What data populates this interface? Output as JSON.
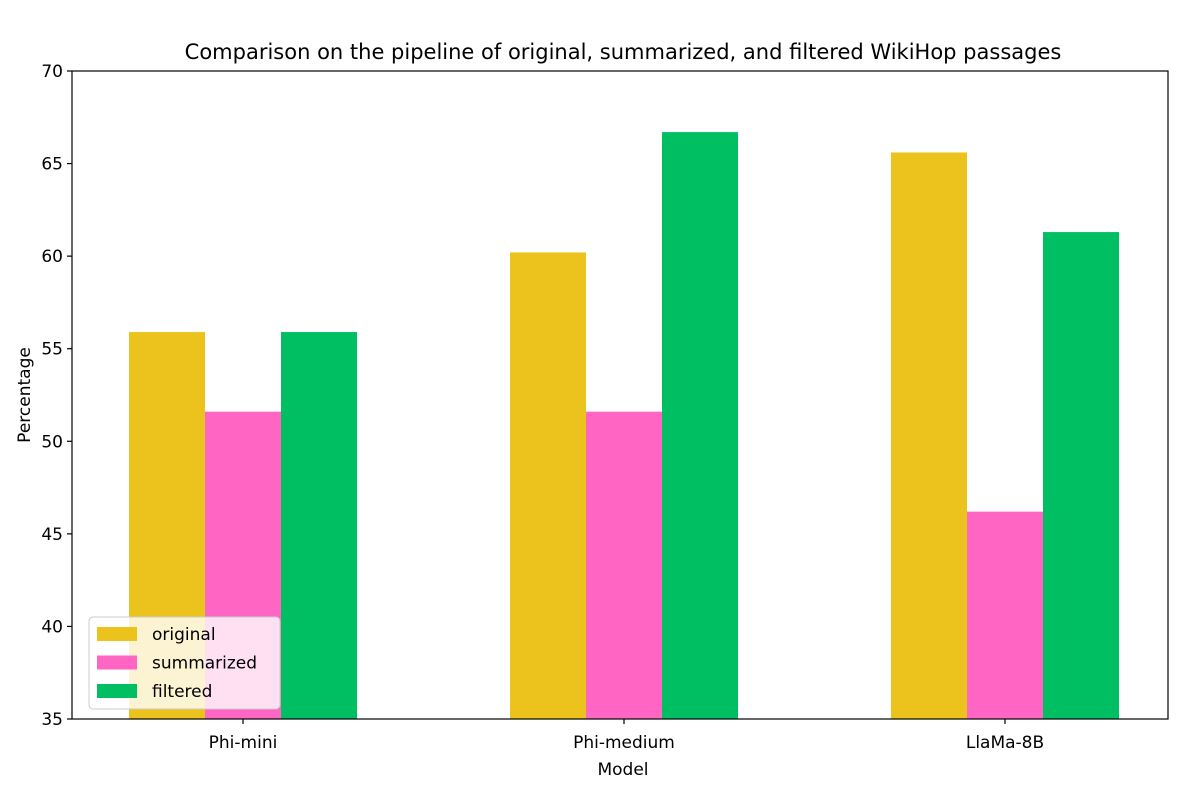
{
  "chart_data": {
    "type": "bar",
    "title": "Comparison on the pipeline of original, summarized, and filtered WikiHop passages",
    "xlabel": "Model",
    "ylabel": "Percentage",
    "categories": [
      "Phi-mini",
      "Phi-medium",
      "LlaMa-8B"
    ],
    "series": [
      {
        "name": "original",
        "color": "#ebc31c",
        "values": [
          55.9,
          60.2,
          65.6
        ]
      },
      {
        "name": "summarized",
        "color": "#ff66c4",
        "values": [
          51.6,
          51.6,
          46.2
        ]
      },
      {
        "name": "filtered",
        "color": "#00bf63",
        "values": [
          55.9,
          66.7,
          61.3
        ]
      }
    ],
    "ylim": [
      35,
      70
    ],
    "yticks": [
      35,
      40,
      45,
      50,
      55,
      60,
      65,
      70
    ],
    "grid": false,
    "legend_position": "lower-left"
  }
}
